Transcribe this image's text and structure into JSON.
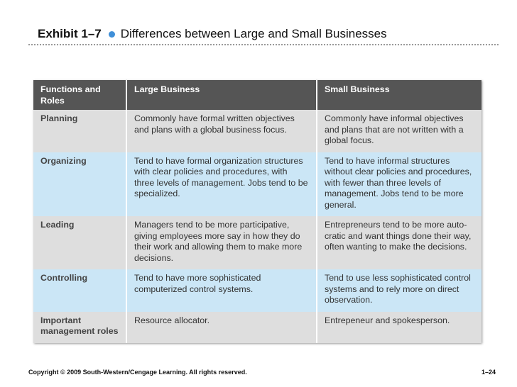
{
  "header": {
    "exhibit": "Exhibit 1–7",
    "title": "Differences between Large and Small Businesses"
  },
  "table": {
    "columns": [
      "Functions and Roles",
      "Large Business",
      "Small Business"
    ],
    "rows": [
      [
        "Planning",
        "Commonly have formal written objectives and plans with a global business focus.",
        "Commonly have informal objectives and plans that are not written with a global focus."
      ],
      [
        "Organizing",
        "Tend to have formal organization structures with clear policies and procedures, with three levels of management. Jobs tend to be specialized.",
        "Tend to have informal structures without clear policies and procedures, with fewer than three levels of management. Jobs tend to be more general."
      ],
      [
        "Leading",
        "Managers tend to be more participative, giving employees more say in how they do their work and allowing them to make more decisions.",
        "Entrepreneurs tend to be more auto-cratic and want things done their way, often wanting to make the decisions."
      ],
      [
        "Controlling",
        "Tend to have more sophisticated computerized control systems.",
        "Tend to use less sophisticated control systems and to rely more on direct observation."
      ],
      [
        "Important management roles",
        "Resource allocator.",
        "Entrepeneur and spokesperson."
      ]
    ]
  },
  "footer": {
    "copyright": "Copyright © 2009 South-Western/Cengage Learning. All rights reserved.",
    "page": "1–24"
  }
}
